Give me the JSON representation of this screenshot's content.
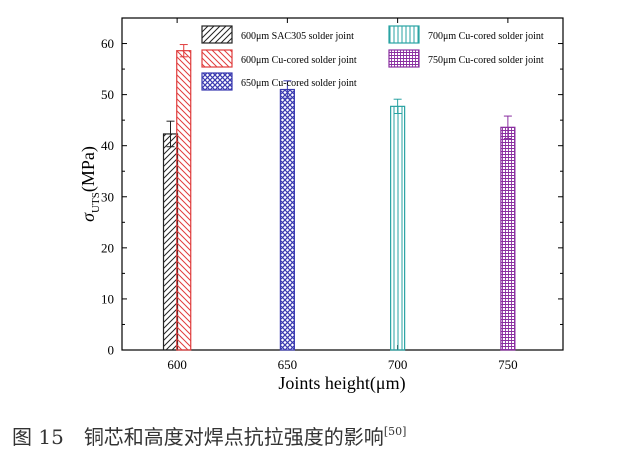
{
  "chart_data": {
    "type": "bar",
    "title": "",
    "xlabel": "Joints height(μm)",
    "ylabel_symbol": "σ",
    "ylabel_subscript": "UTS",
    "ylabel_unit": "(MPa)",
    "xlim": [
      575,
      775
    ],
    "ylim": [
      0,
      65
    ],
    "xticks": [
      600,
      650,
      700,
      750
    ],
    "yticks": [
      0,
      10,
      20,
      30,
      40,
      50,
      60
    ],
    "legend_placement": "top",
    "series": [
      {
        "name": "600μm SAC305 solder joint",
        "x": 597,
        "value": 42.3,
        "error": 2.5,
        "color": "#222222",
        "pattern": "diag-right"
      },
      {
        "name": "600μm Cu-cored solder joint",
        "x": 603,
        "value": 58.6,
        "error": 1.2,
        "color": "#e03c3c",
        "pattern": "diag-left"
      },
      {
        "name": "650μm Cu-cored solder joint",
        "x": 650,
        "value": 51.0,
        "error": 1.7,
        "color": "#3a3ab0",
        "pattern": "crosshatch"
      },
      {
        "name": "700μm Cu-cored solder joint",
        "x": 700,
        "value": 47.7,
        "error": 1.4,
        "color": "#2aa3a3",
        "pattern": "vertical"
      },
      {
        "name": "750μm Cu-cored solder joint",
        "x": 750,
        "value": 43.6,
        "error": 2.2,
        "color": "#8a2ea0",
        "pattern": "grid"
      }
    ]
  },
  "caption": {
    "figure_number": "图 15",
    "text": "铜芯和高度对焊点抗拉强度的影响",
    "reference": "[50]"
  }
}
